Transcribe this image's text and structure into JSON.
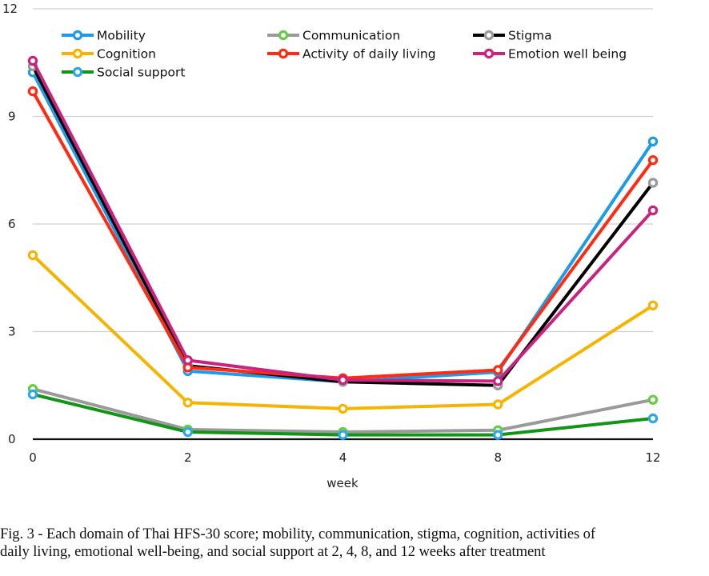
{
  "chart_data": {
    "type": "line",
    "title": "",
    "xlabel": "week",
    "ylabel": "",
    "categories": [
      "0",
      "2",
      "4",
      "8",
      "12"
    ],
    "ylim": [
      0,
      12
    ],
    "yticks": [
      "0",
      "3",
      "6",
      "9",
      "12"
    ],
    "grid": true,
    "legend_position": "top",
    "series": [
      {
        "name": "Mobility",
        "line_color": "#1E9BE8",
        "marker_color": "#1E9BE8",
        "values": [
          10.23,
          1.9,
          1.6,
          1.87,
          8.3
        ]
      },
      {
        "name": "Communication",
        "line_color": "#9A9A9A",
        "marker_color": "#66CC44",
        "values": [
          1.4,
          0.27,
          0.2,
          0.25,
          1.1
        ]
      },
      {
        "name": "Stigma",
        "line_color": "#000000",
        "marker_color": "#9A9A9A",
        "values": [
          10.4,
          2.05,
          1.6,
          1.5,
          7.15
        ]
      },
      {
        "name": "Cognition",
        "line_color": "#F5B400",
        "marker_color": "#F5B400",
        "values": [
          5.13,
          1.02,
          0.85,
          0.97,
          3.73
        ]
      },
      {
        "name": "Activity of daily living",
        "line_color": "#FF2A0F",
        "marker_color": "#FF2A0F",
        "values": [
          9.7,
          2.0,
          1.7,
          1.93,
          7.78
        ]
      },
      {
        "name": "Emotion well being",
        "line_color": "#C8237F",
        "marker_color": "#C8237F",
        "values": [
          10.55,
          2.2,
          1.65,
          1.62,
          6.38
        ]
      },
      {
        "name": "Social support",
        "line_color": "#129415",
        "marker_color": "#2AA7F0",
        "values": [
          1.25,
          0.2,
          0.12,
          0.12,
          0.58
        ]
      }
    ]
  },
  "caption": {
    "line1": "Fig. 3 - Each domain of Thai HFS-30 score; mobility, communication, stigma, cognition, activities of",
    "line2": "daily living, emotional well-being, and social support at 2, 4, 8, and 12 weeks after treatment"
  }
}
